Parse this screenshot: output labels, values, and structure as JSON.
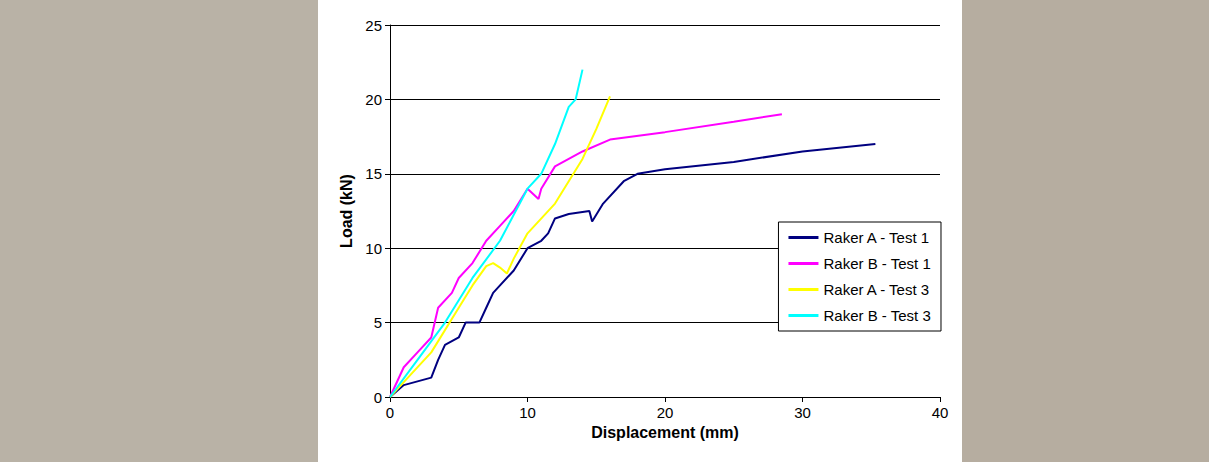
{
  "chart_data": {
    "type": "line",
    "x_label": "Displacement (mm)",
    "y_label": "Load (kN)",
    "xlim": [
      0,
      40
    ],
    "xticks": [
      0,
      10,
      20,
      30,
      40
    ],
    "ylim": [
      0,
      25
    ],
    "yticks": [
      0,
      5,
      10,
      15,
      20,
      25
    ],
    "grid": true,
    "legend": "right",
    "marker": "none",
    "series": [
      {
        "name": "Raker A - Test 1",
        "color": "#000080",
        "x": [
          0,
          1,
          3,
          3.5,
          4,
          5,
          5.5,
          6.5,
          7,
          7.5,
          8,
          9,
          10,
          11,
          11.5,
          12,
          13,
          14.5,
          14.7,
          15.5,
          17,
          18,
          20,
          25,
          30,
          35.3
        ],
        "values": [
          0,
          0.8,
          1.3,
          2.5,
          3.5,
          4,
          5,
          5,
          6,
          7,
          7.5,
          8.5,
          10,
          10.5,
          11,
          12,
          12.3,
          12.5,
          11.8,
          13,
          14.5,
          15,
          15.3,
          15.8,
          16.5,
          17
        ]
      },
      {
        "name": "Raker B - Test 1",
        "color": "#ff00ff",
        "x": [
          0,
          1,
          2,
          3,
          3.5,
          4.5,
          5,
          6,
          7,
          8,
          9,
          10,
          10.8,
          11,
          12,
          14,
          16,
          20,
          25,
          28.5
        ],
        "values": [
          0,
          2,
          3,
          4,
          6,
          7,
          8,
          9,
          10.5,
          11.5,
          12.5,
          14,
          13.3,
          14,
          15.5,
          16.5,
          17.3,
          17.8,
          18.5,
          19
        ]
      },
      {
        "name": "Raker A - Test 3",
        "color": "#ffff00",
        "x": [
          0,
          1,
          3,
          5,
          6,
          7,
          7.5,
          8,
          8.5,
          9,
          10,
          12,
          14,
          15,
          16
        ],
        "values": [
          0,
          1,
          3,
          6,
          7.5,
          8.8,
          9,
          8.7,
          8.3,
          9.3,
          11,
          13,
          16,
          18,
          20.2
        ]
      },
      {
        "name": "Raker B - Test 3",
        "color": "#00ffff",
        "x": [
          0,
          2,
          4,
          6,
          8,
          10,
          11,
          12,
          13,
          13.5,
          14
        ],
        "values": [
          0,
          2.5,
          5,
          8,
          10.5,
          14,
          15,
          17,
          19.5,
          20,
          22
        ]
      }
    ]
  }
}
